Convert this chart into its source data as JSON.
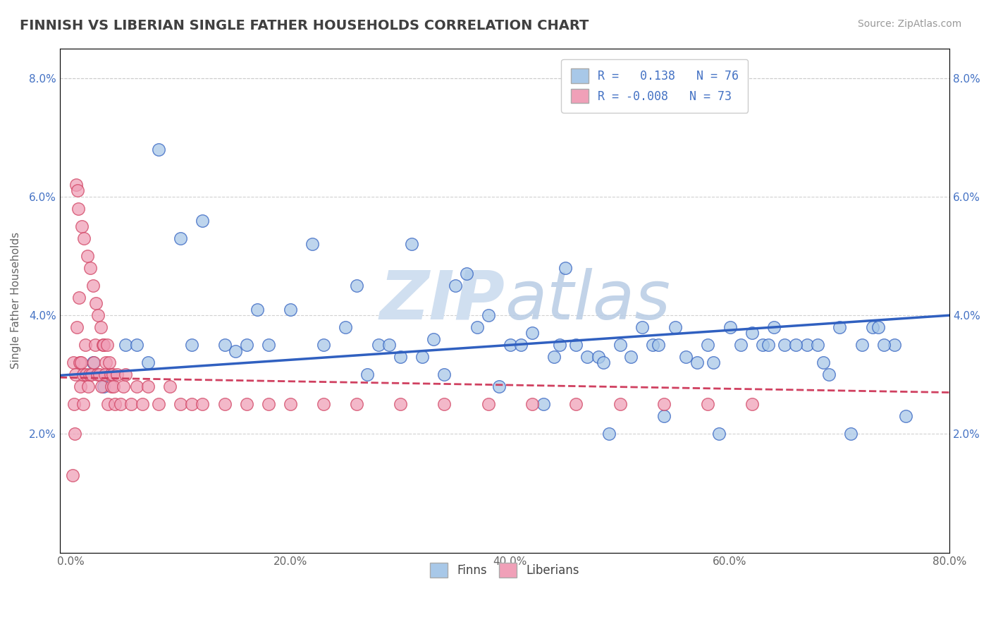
{
  "title": "FINNISH VS LIBERIAN SINGLE FATHER HOUSEHOLDS CORRELATION CHART",
  "source": "Source: ZipAtlas.com",
  "ylabel": "Single Father Households",
  "xlim": [
    0,
    80
  ],
  "ylim": [
    0,
    8.5
  ],
  "xticks": [
    0,
    20,
    40,
    60,
    80
  ],
  "yticks": [
    2,
    4,
    6,
    8
  ],
  "xticklabels": [
    "0.0%",
    "20.0%",
    "40.0%",
    "60.0%",
    "80.0%"
  ],
  "yticklabels": [
    "2.0%",
    "4.0%",
    "6.0%",
    "8.0%"
  ],
  "legend_labels": [
    "Finns",
    "Liberians"
  ],
  "finn_R": 0.138,
  "finn_N": 76,
  "liberian_R": -0.008,
  "liberian_N": 73,
  "finn_color": "#a8c8e8",
  "liberian_color": "#f0a0b8",
  "finn_line_color": "#3060c0",
  "liberian_line_color": "#d04060",
  "background_color": "#ffffff",
  "grid_color": "#cccccc",
  "title_color": "#404040",
  "watermark_color": "#d0dff0",
  "finn_x": [
    5.0,
    10.0,
    15.0,
    20.0,
    25.0,
    28.0,
    30.0,
    33.0,
    35.0,
    37.0,
    38.0,
    40.0,
    42.0,
    44.0,
    45.0,
    47.0,
    48.0,
    50.0,
    52.0,
    53.0,
    55.0,
    57.0,
    58.0,
    60.0,
    62.0,
    63.0,
    65.0,
    67.0,
    68.0,
    70.0,
    72.0,
    73.0,
    75.0,
    8.0,
    12.0,
    17.0,
    22.0,
    26.0,
    31.0,
    36.0,
    41.0,
    46.0,
    51.0,
    56.0,
    61.0,
    66.0,
    71.0,
    76.0,
    3.0,
    18.0,
    27.0,
    32.0,
    39.0,
    43.0,
    49.0,
    54.0,
    59.0,
    64.0,
    69.0,
    74.0,
    6.0,
    14.0,
    23.0,
    29.0,
    34.0,
    44.5,
    48.5,
    53.5,
    58.5,
    63.5,
    68.5,
    73.5,
    2.0,
    7.0,
    11.0,
    16.0
  ],
  "finn_y": [
    3.5,
    5.3,
    3.4,
    4.1,
    3.8,
    3.5,
    3.3,
    3.6,
    4.5,
    3.8,
    4.0,
    3.5,
    3.7,
    3.3,
    4.8,
    3.3,
    3.3,
    3.5,
    3.8,
    3.5,
    3.8,
    3.2,
    3.5,
    3.8,
    3.7,
    3.5,
    3.5,
    3.5,
    3.5,
    3.8,
    3.5,
    3.8,
    3.5,
    6.8,
    5.6,
    4.1,
    5.2,
    4.5,
    5.2,
    4.7,
    3.5,
    3.5,
    3.3,
    3.3,
    3.5,
    3.5,
    2.0,
    2.3,
    2.8,
    3.5,
    3.0,
    3.3,
    2.8,
    2.5,
    2.0,
    2.3,
    2.0,
    3.8,
    3.0,
    3.5,
    3.5,
    3.5,
    3.5,
    3.5,
    3.0,
    3.5,
    3.2,
    3.5,
    3.2,
    3.5,
    3.2,
    3.8,
    3.2,
    3.2,
    3.5,
    3.5
  ],
  "liberian_x": [
    0.2,
    0.3,
    0.4,
    0.5,
    0.6,
    0.7,
    0.8,
    0.9,
    1.0,
    1.1,
    1.2,
    1.3,
    1.4,
    1.5,
    1.6,
    1.7,
    1.8,
    1.9,
    2.0,
    2.1,
    2.2,
    2.3,
    2.4,
    2.5,
    2.6,
    2.7,
    2.8,
    2.9,
    3.0,
    3.1,
    3.2,
    3.3,
    3.4,
    3.5,
    3.6,
    3.7,
    3.8,
    3.9,
    4.0,
    4.2,
    4.5,
    4.8,
    5.0,
    5.5,
    6.0,
    6.5,
    7.0,
    8.0,
    9.0,
    10.0,
    11.0,
    12.0,
    14.0,
    16.0,
    18.0,
    20.0,
    23.0,
    26.0,
    30.0,
    34.0,
    38.0,
    42.0,
    46.0,
    50.0,
    54.0,
    58.0,
    62.0,
    0.15,
    0.35,
    0.55,
    0.75,
    0.95,
    1.15
  ],
  "liberian_y": [
    3.2,
    2.5,
    3.0,
    6.2,
    6.1,
    5.8,
    3.2,
    2.8,
    5.5,
    3.0,
    5.3,
    3.5,
    3.0,
    5.0,
    2.8,
    3.0,
    4.8,
    3.0,
    4.5,
    3.2,
    3.5,
    4.2,
    3.0,
    4.0,
    3.0,
    3.8,
    2.8,
    3.5,
    3.5,
    3.0,
    3.2,
    3.5,
    2.5,
    3.2,
    3.0,
    2.8,
    3.0,
    2.8,
    2.5,
    3.0,
    2.5,
    2.8,
    3.0,
    2.5,
    2.8,
    2.5,
    2.8,
    2.5,
    2.8,
    2.5,
    2.5,
    2.5,
    2.5,
    2.5,
    2.5,
    2.5,
    2.5,
    2.5,
    2.5,
    2.5,
    2.5,
    2.5,
    2.5,
    2.5,
    2.5,
    2.5,
    2.5,
    1.3,
    2.0,
    3.8,
    4.3,
    3.2,
    2.5
  ]
}
